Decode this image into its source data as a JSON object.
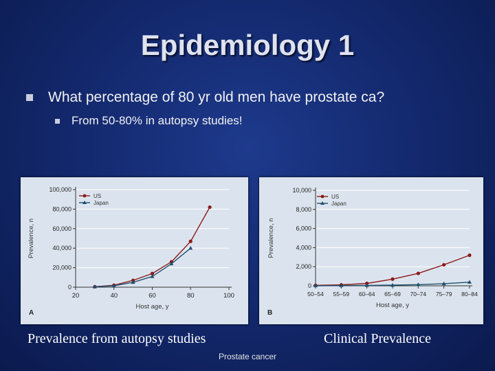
{
  "slide": {
    "title": "Epidemiology 1",
    "bullet1": "What percentage of 80 yr old men have prostate ca?",
    "bullet2": "From 50-80% in autopsy studies!",
    "caption_left": "Prevalence from autopsy studies",
    "caption_right": "Clinical Prevalence",
    "footer": "Prostate cancer"
  },
  "chart_data": [
    {
      "type": "line",
      "panel_label": "A",
      "xlabel": "Host age, y",
      "ylabel": "Prevalence, n",
      "xlim": [
        20,
        100
      ],
      "ylim": [
        0,
        100000
      ],
      "x_ticks": [
        "20",
        "40",
        "60",
        "80",
        "100"
      ],
      "y_ticks": [
        "0",
        "20,000",
        "40,000",
        "60,000",
        "80,000",
        "100,000"
      ],
      "legend_position": "top-left",
      "series": [
        {
          "name": "US",
          "color": "#8b1a1a",
          "marker": "circle",
          "x": [
            30,
            40,
            50,
            60,
            70,
            80,
            90
          ],
          "y": [
            500,
            2000,
            7000,
            14000,
            26000,
            47000,
            82000
          ]
        },
        {
          "name": "Japan",
          "color": "#1f4e6e",
          "marker": "triangle",
          "x": [
            30,
            40,
            50,
            60,
            70,
            80
          ],
          "y": [
            400,
            1500,
            5000,
            11000,
            24000,
            40000
          ]
        }
      ]
    },
    {
      "type": "line",
      "panel_label": "B",
      "xlabel": "Host age, y",
      "ylabel": "Prevalence, n",
      "ylim": [
        0,
        10000
      ],
      "categories": [
        "50–54",
        "55–59",
        "60–64",
        "65–69",
        "70–74",
        "75–79",
        "80–84"
      ],
      "y_ticks": [
        "0",
        "2,000",
        "4,000",
        "6,000",
        "8,000",
        "10,000"
      ],
      "legend_position": "top-left",
      "series": [
        {
          "name": "US",
          "color": "#8b1a1a",
          "marker": "circle",
          "values": [
            50,
            100,
            250,
            700,
            1300,
            2200,
            3200
          ]
        },
        {
          "name": "Japan",
          "color": "#1f4e6e",
          "marker": "triangle",
          "values": [
            10,
            20,
            40,
            70,
            120,
            220,
            380
          ]
        }
      ]
    }
  ]
}
